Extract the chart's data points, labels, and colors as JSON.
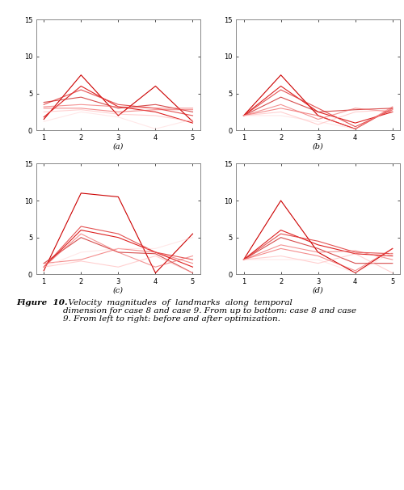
{
  "x": [
    1,
    2,
    3,
    4,
    5
  ],
  "subplot_labels": [
    "(a)",
    "(b)",
    "(c)",
    "(d)"
  ],
  "ylim": [
    0,
    15
  ],
  "yticks": [
    0,
    5,
    10,
    15
  ],
  "xticks": [
    1,
    2,
    3,
    4,
    5
  ],
  "caption_bold": "Figure  10.",
  "caption_rest": "  Velocity  magnitudes  of  landmarks  along  temporal\ndimension for case 8 and case 9. From up to bottom: case 8 and case\n9. From left to right: before and after optimization.",
  "plots": {
    "a": [
      [
        1.5,
        7.5,
        2.0,
        6.0,
        1.2
      ],
      [
        1.8,
        6.0,
        3.2,
        2.5,
        1.0
      ],
      [
        3.5,
        5.5,
        3.5,
        3.0,
        2.0
      ],
      [
        3.8,
        4.5,
        3.0,
        3.5,
        2.5
      ],
      [
        3.2,
        3.5,
        3.2,
        3.0,
        3.0
      ],
      [
        3.0,
        3.0,
        2.5,
        2.8,
        2.8
      ],
      [
        2.5,
        2.8,
        2.2,
        2.0,
        1.2
      ],
      [
        1.2,
        2.5,
        1.8,
        0.2,
        1.5
      ]
    ],
    "b": [
      [
        2.0,
        7.5,
        2.0,
        0.2,
        3.0
      ],
      [
        2.0,
        6.0,
        2.5,
        1.0,
        2.5
      ],
      [
        2.0,
        5.5,
        3.0,
        0.5,
        2.8
      ],
      [
        2.0,
        4.5,
        2.5,
        2.8,
        3.0
      ],
      [
        2.0,
        3.5,
        1.5,
        3.0,
        2.5
      ],
      [
        2.0,
        3.0,
        2.0,
        0.2,
        3.2
      ],
      [
        2.0,
        2.5,
        0.8,
        2.5,
        2.8
      ],
      [
        2.0,
        2.0,
        1.2,
        0.2,
        3.0
      ]
    ],
    "c": [
      [
        0.5,
        11.0,
        10.5,
        0.2,
        5.5
      ],
      [
        1.0,
        6.0,
        5.0,
        3.0,
        1.0
      ],
      [
        1.0,
        6.5,
        5.5,
        3.0,
        2.0
      ],
      [
        1.5,
        5.0,
        3.0,
        2.8,
        0.2
      ],
      [
        1.0,
        5.5,
        3.0,
        1.0,
        2.5
      ],
      [
        1.5,
        2.0,
        3.5,
        3.0,
        1.5
      ],
      [
        1.0,
        1.8,
        1.0,
        2.5,
        0.2
      ],
      [
        1.0,
        3.0,
        3.5,
        3.5,
        5.0
      ]
    ],
    "d": [
      [
        2.0,
        10.0,
        3.0,
        0.2,
        3.5
      ],
      [
        2.0,
        6.0,
        4.0,
        2.8,
        2.5
      ],
      [
        2.0,
        5.5,
        4.5,
        3.0,
        2.8
      ],
      [
        2.0,
        5.0,
        3.5,
        1.5,
        1.5
      ],
      [
        2.0,
        4.0,
        3.0,
        3.2,
        2.0
      ],
      [
        2.0,
        3.5,
        2.5,
        0.5,
        3.5
      ],
      [
        2.0,
        2.5,
        1.5,
        2.8,
        0.2
      ],
      [
        2.0,
        2.0,
        2.0,
        0.2,
        3.0
      ]
    ]
  },
  "line_colors": [
    "#cc0000",
    "#dd2020",
    "#e03535",
    "#cc2222",
    "#ee6666",
    "#ee5050",
    "#ffaaaa",
    "#ffcccc"
  ],
  "line_alphas": [
    1.0,
    1.0,
    0.85,
    0.8,
    0.7,
    0.65,
    0.55,
    0.45
  ]
}
